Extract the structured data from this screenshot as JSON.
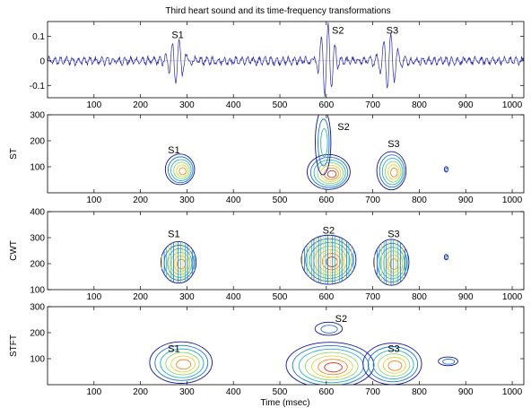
{
  "chart_data": {
    "title": "Third heart sound and its time-frequency transformations",
    "xlabel": "Time (msec)",
    "xlim": [
      0,
      1025
    ],
    "x_ticks": [
      "100",
      "200",
      "300",
      "400",
      "500",
      "600",
      "700",
      "800",
      "900",
      "1000"
    ],
    "panels": [
      {
        "id": "signal",
        "type": "line",
        "ylabel": "",
        "ylim": [
          -0.15,
          0.16
        ],
        "y_ticks": [
          {
            "value": 0.1,
            "label": "0.1"
          },
          {
            "value": 0,
            "label": "0"
          },
          {
            "value": -0.1,
            "label": "-0.1"
          }
        ],
        "line_color": "#2a2aa8",
        "bursts": [
          {
            "label": "S1",
            "center_ms": 280,
            "amplitude": 0.095
          },
          {
            "label": "S2",
            "center_ms": 600,
            "amplitude": 0.15
          },
          {
            "label": "S3",
            "center_ms": 735,
            "amplitude": 0.13
          }
        ],
        "annotations": [
          {
            "text": "S1",
            "x": 280,
            "y": 0.108
          },
          {
            "text": "S2",
            "x": 625,
            "y": 0.125
          },
          {
            "text": "S3",
            "x": 742,
            "y": 0.125
          }
        ]
      },
      {
        "id": "st",
        "type": "contour",
        "ylabel": "ST",
        "ylim": [
          0,
          300
        ],
        "y_ticks": [
          {
            "value": 300,
            "label": "300"
          },
          {
            "value": 200,
            "label": "200"
          },
          {
            "value": 100,
            "label": "100"
          }
        ],
        "blobs": [
          {
            "x": 285,
            "y": 90,
            "sx": 15,
            "sy": 28,
            "peak": 0.9
          },
          {
            "x": 605,
            "y": 80,
            "sx": 22,
            "sy": 32,
            "peak": 1.0
          },
          {
            "x": 593,
            "y": 195,
            "sx": 8,
            "sy": 60,
            "peak": 0.45
          },
          {
            "x": 740,
            "y": 85,
            "sx": 15,
            "sy": 35,
            "peak": 0.85
          },
          {
            "x": 858,
            "y": 90,
            "sx": 2,
            "sy": 5,
            "peak": 0.3
          }
        ],
        "annotations": [
          {
            "text": "S1",
            "x": 272,
            "y": 165
          },
          {
            "text": "S2",
            "x": 637,
            "y": 255
          },
          {
            "text": "S3",
            "x": 745,
            "y": 190
          }
        ]
      },
      {
        "id": "cwt",
        "type": "contour",
        "ylabel": "CWT",
        "ylim": [
          100,
          400
        ],
        "y_ticks": [
          {
            "value": 400,
            "label": "400"
          },
          {
            "value": 300,
            "label": "300"
          },
          {
            "value": 200,
            "label": "200"
          },
          {
            "value": 100,
            "label": "100"
          }
        ],
        "striped": true,
        "blobs": [
          {
            "x": 282,
            "y": 205,
            "sx": 18,
            "sy": 38,
            "peak": 0.9
          },
          {
            "x": 605,
            "y": 215,
            "sx": 28,
            "sy": 45,
            "peak": 1.0
          },
          {
            "x": 740,
            "y": 205,
            "sx": 18,
            "sy": 42,
            "peak": 0.85
          },
          {
            "x": 858,
            "y": 225,
            "sx": 2,
            "sy": 5,
            "peak": 0.3
          }
        ],
        "annotations": [
          {
            "text": "S1",
            "x": 272,
            "y": 315
          },
          {
            "text": "S2",
            "x": 605,
            "y": 330
          },
          {
            "text": "S3",
            "x": 745,
            "y": 315
          }
        ]
      },
      {
        "id": "stft",
        "type": "contour",
        "ylabel": "STFT",
        "ylim": [
          0,
          300
        ],
        "y_ticks": [
          {
            "value": 300,
            "label": "300"
          },
          {
            "value": 200,
            "label": "200"
          },
          {
            "value": 100,
            "label": "100"
          }
        ],
        "blobs": [
          {
            "x": 287,
            "y": 85,
            "sx": 32,
            "sy": 38,
            "peak": 0.85
          },
          {
            "x": 608,
            "y": 75,
            "sx": 45,
            "sy": 42,
            "peak": 1.0
          },
          {
            "x": 605,
            "y": 215,
            "sx": 14,
            "sy": 12,
            "peak": 0.35
          },
          {
            "x": 742,
            "y": 80,
            "sx": 30,
            "sy": 38,
            "peak": 0.85
          },
          {
            "x": 862,
            "y": 90,
            "sx": 10,
            "sy": 8,
            "peak": 0.35
          }
        ],
        "annotations": [
          {
            "text": "S1",
            "x": 272,
            "y": 140
          },
          {
            "text": "S2",
            "x": 632,
            "y": 255
          },
          {
            "text": "S3",
            "x": 745,
            "y": 140
          }
        ]
      }
    ]
  }
}
